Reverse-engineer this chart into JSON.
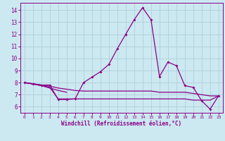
{
  "xlabel": "Windchill (Refroidissement éolien,°C)",
  "background_color": "#cce8f0",
  "grid_color": "#aaccda",
  "line_color": "#880088",
  "x_range": [
    -0.5,
    23.5
  ],
  "y_range": [
    5.5,
    14.6
  ],
  "yticks": [
    6,
    7,
    8,
    9,
    10,
    11,
    12,
    13,
    14
  ],
  "xticks": [
    0,
    1,
    2,
    3,
    4,
    5,
    6,
    7,
    8,
    9,
    10,
    11,
    12,
    13,
    14,
    15,
    16,
    17,
    18,
    19,
    20,
    21,
    22,
    23
  ],
  "series_main": {
    "x": [
      0,
      1,
      2,
      3,
      4,
      5,
      6,
      7,
      8,
      9,
      10,
      11,
      12,
      13,
      14,
      15,
      16,
      17,
      18,
      19,
      20,
      21,
      22,
      23
    ],
    "y": [
      8.0,
      7.9,
      7.8,
      7.8,
      6.6,
      6.6,
      6.65,
      8.0,
      8.45,
      8.9,
      9.5,
      10.8,
      12.0,
      13.2,
      14.2,
      13.2,
      8.5,
      9.7,
      9.4,
      7.75,
      7.6,
      6.5,
      5.8,
      6.9
    ]
  },
  "series_flat1": {
    "x": [
      0,
      1,
      2,
      3,
      4,
      5,
      6,
      7,
      8,
      9,
      10,
      11,
      12,
      13,
      14,
      15,
      16,
      17,
      18,
      19,
      20,
      21,
      22,
      23
    ],
    "y": [
      8.0,
      7.9,
      7.75,
      7.6,
      6.65,
      6.65,
      6.65,
      6.65,
      6.65,
      6.65,
      6.65,
      6.65,
      6.65,
      6.65,
      6.65,
      6.65,
      6.65,
      6.65,
      6.65,
      6.65,
      6.55,
      6.55,
      6.55,
      6.9
    ]
  },
  "series_flat2": {
    "x": [
      0,
      1,
      2,
      3,
      4,
      5,
      6,
      7,
      8,
      9,
      10,
      11,
      12,
      13,
      14,
      15,
      16,
      17,
      18,
      19,
      20,
      21,
      22,
      23
    ],
    "y": [
      8.0,
      7.9,
      7.8,
      7.7,
      7.55,
      7.45,
      7.35,
      7.3,
      7.3,
      7.3,
      7.3,
      7.3,
      7.3,
      7.3,
      7.3,
      7.3,
      7.2,
      7.2,
      7.2,
      7.2,
      7.1,
      7.0,
      6.9,
      6.9
    ]
  },
  "series_short": {
    "x": [
      0,
      2,
      3,
      4,
      5
    ],
    "y": [
      8.0,
      7.75,
      7.55,
      7.35,
      7.2
    ]
  }
}
